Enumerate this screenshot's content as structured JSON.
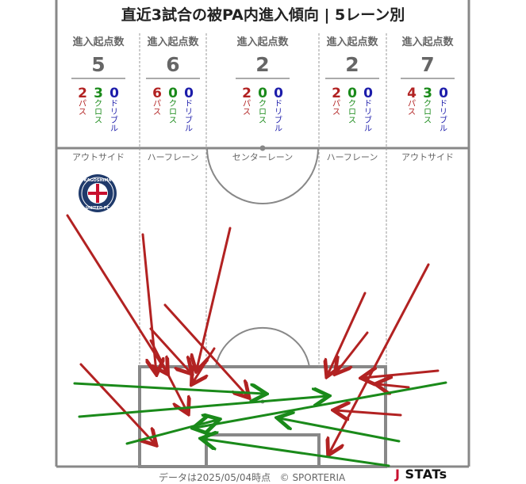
{
  "title": "直近3試合の被PA内進入傾向 | 5レーン別",
  "footer": {
    "date_text": "データは2025/05/04時点",
    "copyright": "© SPORTERIA",
    "logo_mark": "J",
    "logo_text": "STATs"
  },
  "team_logo": {
    "text_top": "KAGOSHIMA",
    "text_bottom": "UNITED FC",
    "icon": "kagoshima-united-fc-crest"
  },
  "colors": {
    "pass": "#b22222",
    "cross": "#1a8a1a",
    "dribble": "#1c1caa",
    "lines": "#888888",
    "label": "#666666"
  },
  "chart_data": {
    "type": "arrow-map",
    "lanes": [
      {
        "name": "アウトサイド",
        "header": "進入起点数",
        "total": "5",
        "pass": "2",
        "cross": "3",
        "dribble": "0"
      },
      {
        "name": "ハーフレーン",
        "header": "進入起点数",
        "total": "6",
        "pass": "6",
        "cross": "0",
        "dribble": "0"
      },
      {
        "name": "センターレーン",
        "header": "進入起点数",
        "total": "2",
        "pass": "2",
        "cross": "0",
        "dribble": "0"
      },
      {
        "name": "ハーフレーン",
        "header": "進入起点数",
        "total": "2",
        "pass": "2",
        "cross": "0",
        "dribble": "0"
      },
      {
        "name": "アウトサイド",
        "header": "進入起点数",
        "total": "7",
        "pass": "4",
        "cross": "3",
        "dribble": "0"
      }
    ],
    "type_labels": {
      "pass": "パス",
      "cross": "クロス",
      "dribble": "ドリブル"
    },
    "arrows": [
      {
        "type": "pass",
        "from": [
          85,
          272
        ],
        "to": [
          210,
          470
        ]
      },
      {
        "type": "pass",
        "from": [
          180,
          296
        ],
        "to": [
          197,
          470
        ]
      },
      {
        "type": "pass",
        "from": [
          290,
          288
        ],
        "to": [
          248,
          466
        ]
      },
      {
        "type": "pass",
        "from": [
          208,
          385
        ],
        "to": [
          312,
          500
        ]
      },
      {
        "type": "pass",
        "from": [
          190,
          415
        ],
        "to": [
          240,
          470
        ]
      },
      {
        "type": "pass",
        "from": [
          190,
          430
        ],
        "to": [
          236,
          520
        ]
      },
      {
        "type": "pass",
        "from": [
          270,
          440
        ],
        "to": [
          243,
          483
        ]
      },
      {
        "type": "pass",
        "from": [
          102,
          460
        ],
        "to": [
          195,
          560
        ]
      },
      {
        "type": "pass",
        "from": [
          460,
          370
        ],
        "to": [
          413,
          473
        ]
      },
      {
        "type": "pass",
        "from": [
          463,
          420
        ],
        "to": [
          424,
          470
        ]
      },
      {
        "type": "pass",
        "from": [
          552,
          468
        ],
        "to": [
          458,
          477
        ]
      },
      {
        "type": "pass",
        "from": [
          515,
          489
        ],
        "to": [
          476,
          485
        ]
      },
      {
        "type": "pass",
        "from": [
          505,
          524
        ],
        "to": [
          423,
          518
        ]
      },
      {
        "type": "pass",
        "from": [
          540,
          334
        ],
        "to": [
          415,
          572
        ]
      },
      {
        "type": "cross",
        "from": [
          94,
          484
        ],
        "to": [
          333,
          497
        ]
      },
      {
        "type": "cross",
        "from": [
          100,
          526
        ],
        "to": [
          412,
          500
        ]
      },
      {
        "type": "cross",
        "from": [
          160,
          560
        ],
        "to": [
          274,
          530
        ]
      },
      {
        "type": "cross",
        "from": [
          562,
          483
        ],
        "to": [
          246,
          540
        ]
      },
      {
        "type": "cross",
        "from": [
          503,
          557
        ],
        "to": [
          352,
          528
        ]
      },
      {
        "type": "cross",
        "from": [
          490,
          588
        ],
        "to": [
          256,
          554
        ]
      }
    ]
  }
}
